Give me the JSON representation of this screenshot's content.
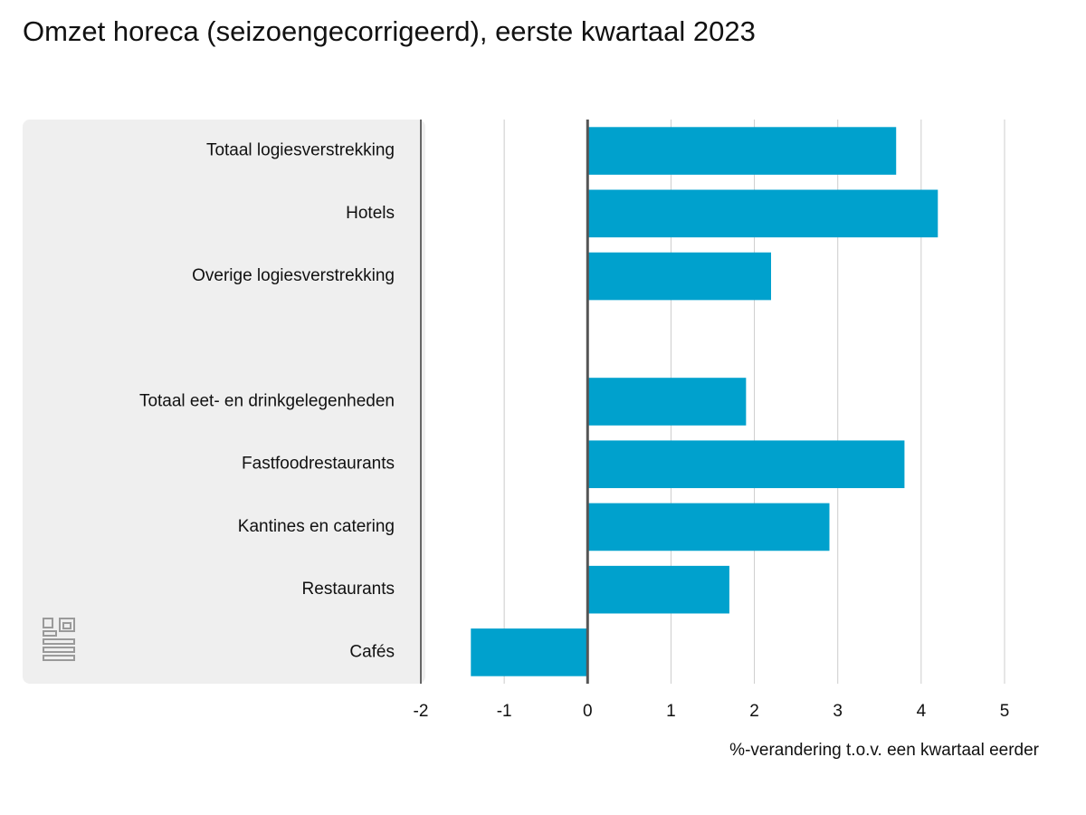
{
  "chart_data": {
    "type": "bar",
    "orientation": "horizontal",
    "title": "Omzet horeca (seizoengecorrigeerd), eerste kwartaal 2023",
    "x_label": "%-verandering t.o.v. een kwartaal eerder",
    "categories": [
      "Totaal logiesverstrekking",
      "Hotels",
      "Overige logiesverstrekking",
      null,
      "Totaal eet- en drinkgelegenheden",
      "Fastfoodrestaurants",
      "Kantines en catering",
      "Restaurants",
      "Cafés"
    ],
    "values": [
      3.7,
      4.2,
      2.2,
      null,
      1.9,
      3.8,
      2.9,
      1.7,
      -1.4
    ],
    "color": "#00a1cd",
    "xlim": [
      -2,
      5
    ],
    "xticks": [
      -2,
      -1,
      0,
      1,
      2,
      3,
      4,
      5
    ],
    "grid": true
  }
}
